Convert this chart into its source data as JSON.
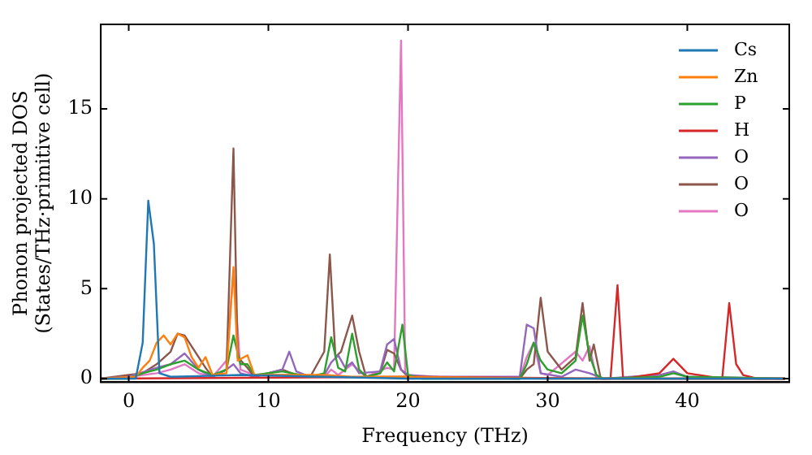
{
  "chart_data": {
    "type": "line",
    "xlabel": "Frequency (THz)",
    "ylabel": "Phonon projected DOS\n(States/THz·primitive cell)",
    "xlim": [
      -2,
      47.3
    ],
    "ylim": [
      -0.2,
      19.7
    ],
    "xticks": [
      0,
      10,
      20,
      30,
      40
    ],
    "yticks": [
      0,
      5,
      10,
      15
    ],
    "grid": false,
    "legend": "top right",
    "marker": "none",
    "line_style": "solid",
    "series": [
      {
        "name": "Cs",
        "color": "#1f77b4",
        "x": [
          -2,
          0.5,
          1,
          1.4,
          1.8,
          2.2,
          3,
          8,
          20,
          47
        ],
        "values": [
          0,
          0,
          2,
          9.9,
          7.5,
          0.3,
          0.1,
          0.2,
          0,
          0
        ]
      },
      {
        "name": "Zn",
        "color": "#ff7f0e",
        "x": [
          -2,
          0.5,
          1,
          1.5,
          2,
          2.5,
          3,
          3.5,
          4,
          4.5,
          5,
          5.5,
          6,
          7,
          7.5,
          7.8,
          8.5,
          9,
          11,
          14,
          16,
          20,
          30,
          47
        ],
        "values": [
          0,
          0.1,
          0.6,
          1,
          2,
          2.4,
          1.9,
          2.5,
          2.3,
          1.2,
          0.6,
          1.2,
          0.2,
          0.3,
          6.2,
          1,
          1.3,
          0.2,
          0.2,
          0.2,
          0.1,
          0.1,
          0,
          0
        ]
      },
      {
        "name": "P",
        "color": "#2ca02c",
        "x": [
          -2,
          0,
          1,
          2,
          3,
          4,
          5,
          6,
          7,
          7.5,
          8,
          8.5,
          9,
          11,
          13,
          14,
          14.5,
          15,
          15.5,
          16,
          16.5,
          17,
          18,
          18.5,
          19,
          19.6,
          20,
          21,
          28,
          28.5,
          29,
          29.5,
          30,
          31,
          32,
          32.5,
          33,
          33.5,
          34,
          38,
          39,
          40,
          47
        ],
        "values": [
          0,
          0,
          0.3,
          0.5,
          0.8,
          1,
          0.5,
          0.2,
          0.5,
          2.4,
          0.8,
          0.8,
          0.2,
          0.4,
          0.1,
          0.3,
          2.3,
          0.6,
          0.4,
          2.5,
          0.5,
          0.1,
          0.3,
          0.9,
          0.4,
          3,
          0.2,
          0,
          0,
          0.8,
          2,
          1,
          0.5,
          0.3,
          1,
          3.5,
          1.3,
          0.2,
          0,
          0.1,
          0.3,
          0.1,
          0
        ]
      },
      {
        "name": "H",
        "color": "#d62728",
        "x": [
          -2,
          20,
          34.5,
          35,
          35.4,
          38,
          39,
          40,
          42.5,
          43,
          43.5,
          44,
          45,
          47
        ],
        "values": [
          0,
          0.1,
          0,
          5.2,
          0,
          0.3,
          1.1,
          0.3,
          0,
          4.2,
          0.8,
          0.2,
          0,
          0
        ]
      },
      {
        "name": "O",
        "color": "#9467bd",
        "x": [
          -2,
          0,
          2,
          3,
          4,
          5,
          6,
          7,
          7.5,
          8,
          9,
          11,
          11.5,
          12,
          13,
          14,
          14.5,
          15,
          15.5,
          16,
          16.5,
          18,
          18.5,
          19,
          19.5,
          20,
          22,
          28,
          28.5,
          29,
          29.5,
          31,
          32,
          33,
          34,
          38,
          39,
          40,
          47
        ],
        "values": [
          0,
          0.1,
          0.6,
          0.8,
          1.4,
          0.5,
          0.1,
          0.5,
          0.8,
          0.3,
          0.1,
          0.5,
          1.5,
          0.4,
          0.1,
          0.2,
          0.9,
          1.3,
          0.6,
          0.9,
          0.3,
          0.4,
          1.9,
          2.2,
          0.5,
          0.2,
          0.1,
          0.1,
          3,
          2.8,
          0.3,
          0.1,
          0.5,
          0.3,
          0,
          0.2,
          0.4,
          0.1,
          0
        ]
      },
      {
        "name": "O",
        "color": "#8c564b",
        "x": [
          -2,
          0,
          1,
          2,
          3,
          3.5,
          4,
          5,
          5.5,
          6,
          7,
          7.5,
          7.8,
          8.5,
          9,
          11,
          12,
          13,
          14,
          14.4,
          14.8,
          15.2,
          16,
          16.5,
          17,
          18,
          18.5,
          19,
          19.5,
          20,
          28,
          28.5,
          29,
          29.5,
          30,
          31,
          32,
          32.5,
          33,
          33.3,
          33.8,
          47
        ],
        "values": [
          0,
          0.2,
          0.3,
          0.8,
          1.5,
          2.5,
          2.4,
          1.2,
          0.6,
          0.1,
          0.5,
          12.8,
          1.2,
          0.6,
          0.1,
          0.5,
          0.2,
          0.1,
          1.5,
          6.9,
          1.2,
          1.5,
          3.5,
          1.5,
          0.1,
          0.3,
          1.6,
          1.4,
          0.5,
          0.1,
          0,
          0.5,
          0.8,
          4.5,
          1.5,
          0.5,
          1.2,
          4.2,
          1,
          1.9,
          0,
          0
        ]
      },
      {
        "name": "O",
        "color": "#e377c2",
        "x": [
          -2,
          0,
          2,
          3,
          4,
          5,
          6,
          7,
          7.5,
          8,
          9,
          11,
          14,
          14.5,
          15,
          16,
          17,
          18.5,
          19,
          19.5,
          19.8,
          20.3,
          22,
          23,
          28,
          28.5,
          29,
          29.5,
          30,
          32,
          32.5,
          33,
          33.5,
          47
        ],
        "values": [
          0,
          0.1,
          0.3,
          0.5,
          0.8,
          0.3,
          0.1,
          1,
          6,
          0.5,
          0.2,
          0.2,
          0.1,
          0.5,
          0.2,
          0.8,
          0.1,
          0.6,
          0.5,
          18.8,
          0.3,
          0,
          0.1,
          0,
          0,
          1.2,
          2,
          0.3,
          0.2,
          1.5,
          1,
          1.8,
          0,
          0
        ]
      }
    ]
  }
}
